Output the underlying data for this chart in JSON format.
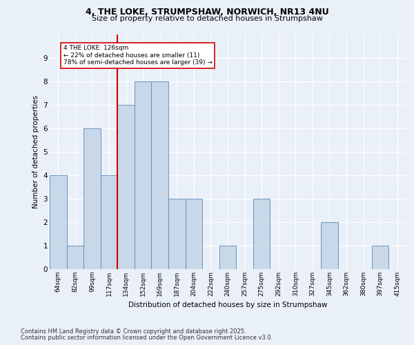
{
  "title": "4, THE LOKE, STRUMPSHAW, NORWICH, NR13 4NU",
  "subtitle": "Size of property relative to detached houses in Strumpshaw",
  "xlabel": "Distribution of detached houses by size in Strumpshaw",
  "ylabel": "Number of detached properties",
  "categories": [
    "64sqm",
    "82sqm",
    "99sqm",
    "117sqm",
    "134sqm",
    "152sqm",
    "169sqm",
    "187sqm",
    "204sqm",
    "222sqm",
    "240sqm",
    "257sqm",
    "275sqm",
    "292sqm",
    "310sqm",
    "327sqm",
    "345sqm",
    "362sqm",
    "380sqm",
    "397sqm",
    "415sqm"
  ],
  "values": [
    4,
    1,
    6,
    4,
    7,
    8,
    8,
    3,
    3,
    0,
    1,
    0,
    3,
    0,
    0,
    0,
    2,
    0,
    0,
    1,
    0
  ],
  "bar_color": "#c8d8e8",
  "bar_edge_color": "#5588bb",
  "vline_x_idx": 3.5,
  "vline_color": "#cc0000",
  "annotation_line1": "4 THE LOKE: 126sqm",
  "annotation_line2": "← 22% of detached houses are smaller (11)",
  "annotation_line3": "78% of semi-detached houses are larger (39) →",
  "annotation_box_color": "#cc0000",
  "ylim": [
    0,
    10
  ],
  "yticks": [
    0,
    1,
    2,
    3,
    4,
    5,
    6,
    7,
    8,
    9
  ],
  "background_color": "#eaf0f8",
  "grid_color": "#ffffff",
  "footer_line1": "Contains HM Land Registry data © Crown copyright and database right 2025.",
  "footer_line2": "Contains public sector information licensed under the Open Government Licence v3.0."
}
